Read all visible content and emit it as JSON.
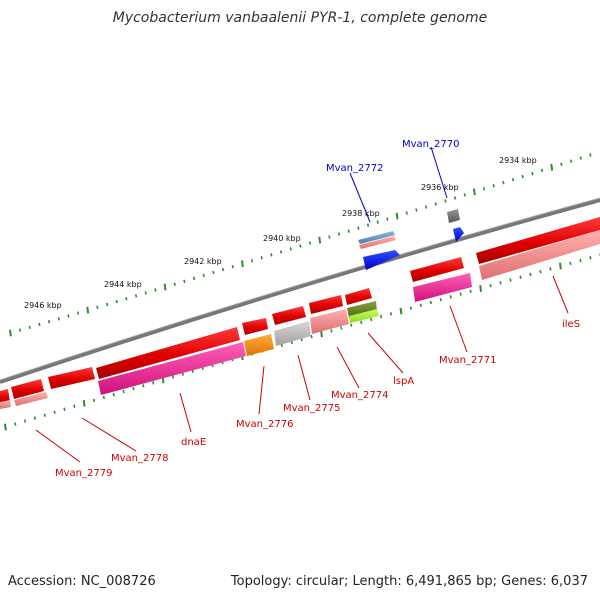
{
  "title": "Mycobacterium vanbaalenii PYR-1, complete genome",
  "footer": {
    "accession": "Accession: NC_008726",
    "summary": "Topology: circular; Length: 6,491,865 bp; Genes: 6,037"
  },
  "colors": {
    "backbone": "#7a7a7a",
    "tick": "#2e8b2e",
    "label_blue": "#0000cc",
    "label_red": "#cc0000"
  },
  "scale": {
    "unit": "kbp",
    "major_ticks_kbp": [
      2946,
      2944,
      2942,
      2940,
      2938,
      2936,
      2934
    ]
  },
  "labels": [
    {
      "name": "Mvan_2772",
      "color": "blue"
    },
    {
      "name": "Mvan_2770",
      "color": "blue"
    },
    {
      "name": "Mvan_2771",
      "color": "red"
    },
    {
      "name": "ileS",
      "color": "red"
    },
    {
      "name": "lspA",
      "color": "red"
    },
    {
      "name": "Mvan_2774",
      "color": "red"
    },
    {
      "name": "Mvan_2775",
      "color": "red"
    },
    {
      "name": "Mvan_2776",
      "color": "red"
    },
    {
      "name": "dnaE",
      "color": "red"
    },
    {
      "name": "Mvan_2778",
      "color": "red"
    },
    {
      "name": "Mvan_2779",
      "color": "red"
    }
  ]
}
